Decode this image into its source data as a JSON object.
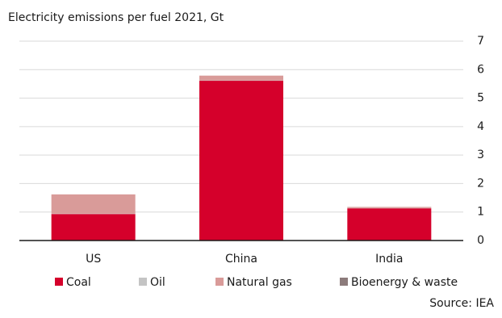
{
  "chart_data": {
    "type": "stacked_bar",
    "title": "Electricity emissions per fuel 2021, Gt",
    "categories": [
      "US",
      "China",
      "India"
    ],
    "series": [
      {
        "name": "Coal",
        "color": "#d5002b",
        "values": [
          0.93,
          5.61,
          1.13
        ]
      },
      {
        "name": "Oil",
        "color": "#c4c4c4",
        "values": [
          0.01,
          0.01,
          0.01
        ]
      },
      {
        "name": "Natural gas",
        "color": "#d99b99",
        "values": [
          0.68,
          0.17,
          0.04
        ]
      },
      {
        "name": "Bioenergy & waste",
        "color": "#8c7b7b",
        "values": [
          0,
          0,
          0
        ]
      }
    ],
    "ylim": [
      0,
      7
    ],
    "yticks": [
      0,
      1,
      2,
      3,
      4,
      5,
      6,
      7
    ],
    "grid": true,
    "source": "Source: IEA"
  }
}
